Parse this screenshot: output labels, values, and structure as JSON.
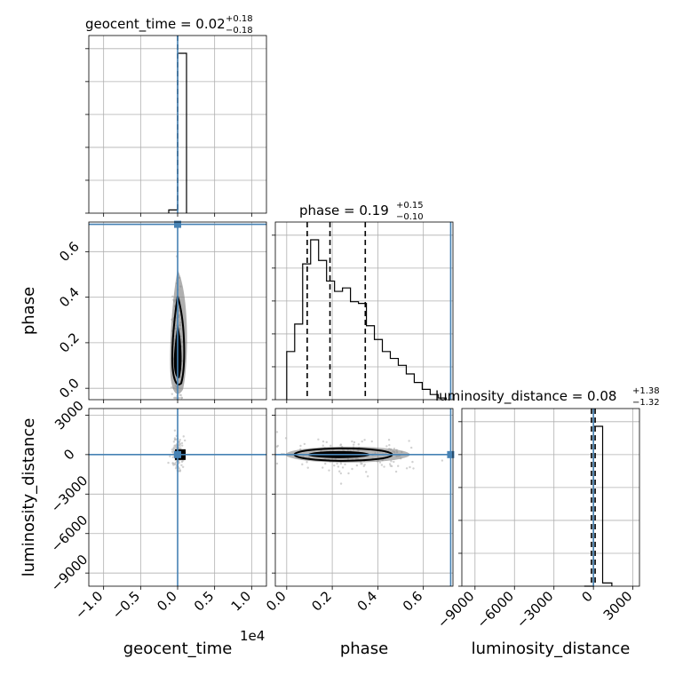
{
  "figure": {
    "titles": {
      "geocent_time": "geocent_time = 0.02",
      "geocent_time_sup": "+0.18",
      "geocent_time_sub": "−0.18",
      "phase": "phase = 0.19",
      "phase_sup": "+0.15",
      "phase_sub": "−0.10",
      "luminosity_distance": "luminosity_distance = 0.08",
      "luminosity_distance_sup": "+1.38",
      "luminosity_distance_sub": "−1.32"
    },
    "xlabels": {
      "geocent_time": "geocent_time",
      "phase": "phase",
      "luminosity_distance": "luminosity_distance"
    },
    "ylabels": {
      "phase": "phase",
      "luminosity_distance": "luminosity_distance"
    },
    "offset_text": "1e4",
    "colors": {
      "truth": "#4682b4",
      "hist": "#000000",
      "grid": "#b0b0b0",
      "scatter": "#bdbdbd"
    }
  },
  "chart_data": {
    "type": "corner",
    "parameters": [
      "geocent_time",
      "phase",
      "luminosity_distance"
    ],
    "grid": true,
    "truths": {
      "geocent_time": 0.0,
      "phase": 0.72,
      "luminosity_distance": 0
    },
    "ranges": {
      "geocent_time": [
        -1.2,
        1.2
      ],
      "phase": [
        -0.05,
        0.73
      ],
      "luminosity_distance": [
        -10000,
        3500
      ]
    },
    "ticks": {
      "geocent_time": {
        "values": [
          -1.0,
          -0.5,
          0.0,
          0.5,
          1.0
        ],
        "labels": [
          "−1.0",
          "−0.5",
          "0.0",
          "0.5",
          "1.0"
        ]
      },
      "phase": {
        "values": [
          0.0,
          0.2,
          0.4,
          0.6
        ],
        "labels": [
          "0.0",
          "0.2",
          "0.4",
          "0.6"
        ]
      },
      "luminosity_distance": {
        "values": [
          -9000,
          -6000,
          -3000,
          0,
          3000
        ],
        "labels": [
          "−9000",
          "−6000",
          "−3000",
          "0",
          "3000"
        ]
      }
    },
    "quantiles": {
      "geocent_time": [
        0.0
      ],
      "phase": [
        0.09,
        0.19,
        0.345
      ],
      "luminosity_distance": [
        -150,
        0,
        130
      ]
    },
    "histograms": {
      "geocent_time": {
        "edges": [
          -0.12,
          0.0,
          0.12
        ],
        "counts": [
          0.02,
          1.0
        ]
      },
      "phase": {
        "edges": [
          0.0,
          0.035,
          0.07,
          0.105,
          0.14,
          0.175,
          0.21,
          0.245,
          0.28,
          0.315,
          0.35,
          0.385,
          0.42,
          0.455,
          0.49,
          0.525,
          0.56,
          0.595,
          0.63,
          0.665,
          0.7
        ],
        "counts": [
          0.28,
          0.44,
          0.79,
          0.93,
          0.81,
          0.69,
          0.63,
          0.65,
          0.57,
          0.56,
          0.43,
          0.35,
          0.28,
          0.24,
          0.2,
          0.15,
          0.1,
          0.06,
          0.03,
          0.01
        ]
      },
      "luminosity_distance": {
        "edges": [
          -700,
          0,
          700,
          1400
        ],
        "counts": [
          0.0,
          1.0,
          0.02
        ]
      }
    }
  }
}
